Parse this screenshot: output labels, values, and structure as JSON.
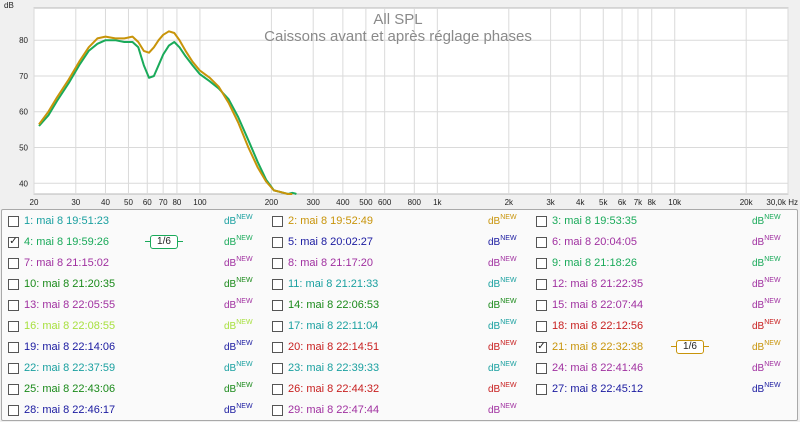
{
  "chart_data": {
    "type": "line",
    "title": "All SPL",
    "subtitle": "Caissons avant et après réglage phases",
    "ylabel": "dB",
    "xlabel": "",
    "xscale": "log",
    "xlim": [
      20,
      30000
    ],
    "ylim": [
      37,
      89
    ],
    "x_ticks": [
      {
        "v": 20,
        "l": "20"
      },
      {
        "v": 30,
        "l": "30"
      },
      {
        "v": 40,
        "l": "40"
      },
      {
        "v": 50,
        "l": "50"
      },
      {
        "v": 60,
        "l": "60"
      },
      {
        "v": 70,
        "l": "70"
      },
      {
        "v": 80,
        "l": "80"
      },
      {
        "v": 100,
        "l": "100"
      },
      {
        "v": 200,
        "l": "200"
      },
      {
        "v": 300,
        "l": "300"
      },
      {
        "v": 400,
        "l": "400"
      },
      {
        "v": 500,
        "l": "500"
      },
      {
        "v": 600,
        "l": "600"
      },
      {
        "v": 800,
        "l": "800"
      },
      {
        "v": 1000,
        "l": "1k"
      },
      {
        "v": 2000,
        "l": "2k"
      },
      {
        "v": 3000,
        "l": "3k"
      },
      {
        "v": 4000,
        "l": "4k"
      },
      {
        "v": 5000,
        "l": "5k"
      },
      {
        "v": 6000,
        "l": "6k"
      },
      {
        "v": 7000,
        "l": "7k"
      },
      {
        "v": 8000,
        "l": "8k"
      },
      {
        "v": 10000,
        "l": "10k"
      },
      {
        "v": 20000,
        "l": "20k"
      },
      {
        "v": 30000,
        "l": "30,0k Hz"
      }
    ],
    "y_ticks": [
      40,
      50,
      60,
      70,
      80
    ],
    "grid": true,
    "series": [
      {
        "name": "4: mai 8 19:59:26",
        "color": "#1aaa5a",
        "x": [
          21,
          23,
          25,
          28,
          31,
          34,
          37,
          40,
          44,
          48,
          52,
          55,
          58,
          61,
          64,
          67,
          70,
          74,
          78,
          82,
          87,
          93,
          100,
          110,
          120,
          132,
          145,
          160,
          175,
          190,
          205,
          220,
          235,
          245,
          250,
          255
        ],
        "y": [
          56,
          59,
          63,
          68,
          73,
          77,
          79,
          80,
          80,
          79.5,
          79.5,
          78,
          73,
          69.5,
          70,
          73,
          76,
          78.5,
          79.5,
          78,
          75.5,
          73,
          70.5,
          68.5,
          66.5,
          63.5,
          58.5,
          52,
          46,
          41,
          38,
          37.5,
          37,
          37.3,
          37.2,
          37
        ]
      },
      {
        "name": "21: mai 8 22:32:38",
        "color": "#c8940a",
        "x": [
          21,
          23,
          25,
          28,
          31,
          34,
          37,
          40,
          44,
          48,
          52,
          55,
          58,
          61,
          64,
          67,
          70,
          74,
          78,
          82,
          87,
          93,
          100,
          110,
          120,
          132,
          145,
          160,
          175,
          190,
          205,
          220,
          235,
          245
        ],
        "y": [
          56.5,
          60,
          64,
          69,
          74,
          78,
          80.5,
          81,
          80.5,
          80.5,
          81,
          79.5,
          77,
          76.5,
          78,
          80,
          81.5,
          82.5,
          82,
          80,
          77,
          74,
          71.5,
          69.5,
          67,
          62.5,
          57,
          50,
          44.5,
          40.5,
          38,
          37.5,
          37,
          37
        ]
      }
    ]
  },
  "legend": {
    "db_main": "dB",
    "db_sup": "NEW",
    "smoothing_label": "1/6",
    "entries": [
      {
        "label": "1: mai 8 19:51:23",
        "color": "#1aa0a0",
        "checked": false
      },
      {
        "label": "2: mai 8 19:52:49",
        "color": "#c8940a",
        "checked": false
      },
      {
        "label": "3: mai 8 19:53:35",
        "color": "#1aaa5a",
        "checked": false
      },
      {
        "label": "4: mai 8 19:59:26",
        "color": "#1aaa5a",
        "checked": true
      },
      {
        "label": "5: mai 8 20:02:27",
        "color": "#1a1aa0",
        "checked": false
      },
      {
        "label": "6: mai 8 20:04:05",
        "color": "#a030a0",
        "checked": false
      },
      {
        "label": "7: mai 8 21:15:02",
        "color": "#a030a0",
        "checked": false
      },
      {
        "label": "8: mai 8 21:17:20",
        "color": "#a030a0",
        "checked": false
      },
      {
        "label": "9: mai 8 21:18:26",
        "color": "#1aaa5a",
        "checked": false
      },
      {
        "label": "10: mai 8 21:20:35",
        "color": "#1a8a1a",
        "checked": false
      },
      {
        "label": "11: mai 8 21:21:33",
        "color": "#1aa0a0",
        "checked": false
      },
      {
        "label": "12: mai 8 21:22:35",
        "color": "#a030a0",
        "checked": false
      },
      {
        "label": "13: mai 8 22:05:55",
        "color": "#a030a0",
        "checked": false
      },
      {
        "label": "14: mai 8 22:06:53",
        "color": "#1a8a1a",
        "checked": false
      },
      {
        "label": "15: mai 8 22:07:44",
        "color": "#a030a0",
        "checked": false
      },
      {
        "label": "16: mai 8 22:08:55",
        "color": "#a8e040",
        "checked": false
      },
      {
        "label": "17: mai 8 22:11:04",
        "color": "#1aa0a0",
        "checked": false
      },
      {
        "label": "18: mai 8 22:12:56",
        "color": "#c82020",
        "checked": false
      },
      {
        "label": "19: mai 8 22:14:06",
        "color": "#1a1aa0",
        "checked": false
      },
      {
        "label": "20: mai 8 22:14:51",
        "color": "#c82020",
        "checked": false
      },
      {
        "label": "21: mai 8 22:32:38",
        "color": "#c8940a",
        "checked": true
      },
      {
        "label": "22: mai 8 22:37:59",
        "color": "#1aa0a0",
        "checked": false
      },
      {
        "label": "23: mai 8 22:39:33",
        "color": "#1aa0a0",
        "checked": false
      },
      {
        "label": "24: mai 8 22:41:46",
        "color": "#a030a0",
        "checked": false
      },
      {
        "label": "25: mai 8 22:43:06",
        "color": "#1a8a1a",
        "checked": false
      },
      {
        "label": "26: mai 8 22:44:32",
        "color": "#c82020",
        "checked": false
      },
      {
        "label": "27: mai 8 22:45:12",
        "color": "#1a1aa0",
        "checked": false
      },
      {
        "label": "28: mai 8 22:46:17",
        "color": "#1a1aa0",
        "checked": false
      },
      {
        "label": "29: mai 8 22:47:44",
        "color": "#a030a0",
        "checked": false
      }
    ]
  }
}
